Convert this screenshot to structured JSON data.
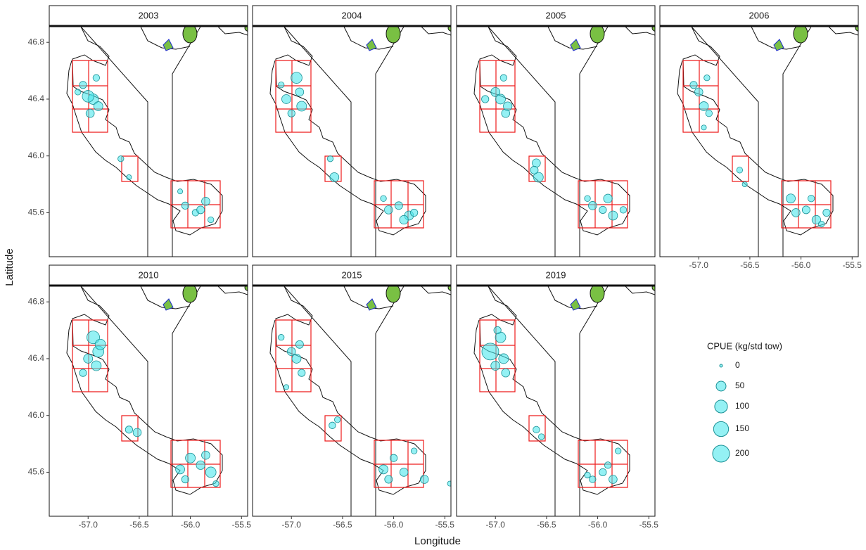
{
  "chart_data": {
    "type": "scatter",
    "x_label": "Longitude",
    "y_label": "Latitude",
    "xlim": [
      -57.38,
      -55.44
    ],
    "ylim": [
      45.29,
      46.91
    ],
    "xticks": [
      {
        "value": -57,
        "label": "-57.0"
      },
      -56.5,
      {
        "value": -56,
        "label": "-56.0"
      },
      -55.5
    ],
    "yticks": [
      45.6,
      {
        "value": 46,
        "label": "46.0"
      },
      46.4,
      46.8
    ],
    "point_fill": "#4de8ec",
    "point_stroke": "#1a8f94",
    "legend": {
      "title": "CPUE (kg/std tow)",
      "values": [
        0,
        50,
        100,
        150,
        200
      ]
    },
    "facets": [
      {
        "name": "2003",
        "x": [
          -57.05,
          -56.95,
          -56.9,
          -57.1,
          -56.98,
          -56.92,
          -57.0,
          -56.68,
          -56.6,
          -56.05,
          -55.95,
          -55.85,
          -55.8,
          -56.1,
          -55.9
        ],
        "y": [
          46.5,
          46.4,
          46.35,
          46.45,
          46.3,
          46.55,
          46.42,
          45.98,
          45.85,
          45.65,
          45.6,
          45.68,
          45.55,
          45.75,
          45.62
        ],
        "size": [
          20,
          60,
          40,
          10,
          30,
          15,
          80,
          10,
          5,
          20,
          15,
          30,
          10,
          5,
          25
        ]
      },
      {
        "name": "2004",
        "x": [
          -56.95,
          -57.05,
          -56.9,
          -57.0,
          -56.92,
          -57.1,
          -56.62,
          -56.58,
          -56.05,
          -55.95,
          -55.85,
          -55.8,
          -56.1,
          -55.9
        ],
        "y": [
          46.55,
          46.4,
          46.35,
          46.3,
          46.45,
          46.5,
          45.98,
          45.85,
          45.62,
          45.65,
          45.58,
          45.6,
          45.7,
          45.55
        ],
        "size": [
          70,
          40,
          50,
          20,
          30,
          10,
          10,
          40,
          30,
          25,
          40,
          20,
          10,
          35
        ]
      },
      {
        "name": "2005",
        "x": [
          -57.0,
          -56.95,
          -56.9,
          -57.1,
          -56.92,
          -56.88,
          -56.6,
          -56.58,
          -56.62,
          -56.05,
          -55.95,
          -55.85,
          -55.75,
          -56.1,
          -55.9
        ],
        "y": [
          46.45,
          46.4,
          46.3,
          46.4,
          46.55,
          46.35,
          45.95,
          45.85,
          45.9,
          45.65,
          45.62,
          45.58,
          45.62,
          45.7,
          45.7
        ],
        "size": [
          40,
          50,
          30,
          20,
          15,
          35,
          30,
          50,
          25,
          30,
          20,
          40,
          15,
          10,
          35
        ]
      },
      {
        "name": "2006",
        "x": [
          -57.0,
          -56.95,
          -56.9,
          -57.05,
          -56.92,
          -56.95,
          -56.6,
          -56.55,
          -56.1,
          -55.95,
          -55.85,
          -55.75,
          -56.05,
          -55.9,
          -55.8
        ],
        "y": [
          46.45,
          46.35,
          46.3,
          46.5,
          46.55,
          46.2,
          45.9,
          45.8,
          45.7,
          45.62,
          45.55,
          45.6,
          45.6,
          45.7,
          45.52
        ],
        "size": [
          30,
          40,
          15,
          20,
          10,
          5,
          10,
          5,
          40,
          25,
          35,
          20,
          30,
          15,
          10
        ]
      },
      {
        "name": "2010",
        "x": [
          -56.95,
          -56.9,
          -57.0,
          -56.92,
          -57.05,
          -56.88,
          -56.6,
          -56.52,
          -56.1,
          -56.0,
          -55.9,
          -55.8,
          -56.05,
          -55.85,
          -55.75
        ],
        "y": [
          46.55,
          46.45,
          46.4,
          46.35,
          46.3,
          46.5,
          45.9,
          45.88,
          45.62,
          45.7,
          45.65,
          45.6,
          45.55,
          45.72,
          45.52
        ],
        "size": [
          100,
          70,
          40,
          50,
          20,
          60,
          20,
          30,
          40,
          50,
          35,
          60,
          20,
          30,
          10
        ]
      },
      {
        "name": "2015",
        "x": [
          -57.0,
          -56.95,
          -56.9,
          -57.1,
          -56.92,
          -57.05,
          -56.6,
          -56.55,
          -56.1,
          -56.0,
          -55.9,
          -55.8,
          -56.05,
          -55.7,
          -55.45
        ],
        "y": [
          46.45,
          46.4,
          46.3,
          46.55,
          46.5,
          46.2,
          45.93,
          45.97,
          45.62,
          45.7,
          45.6,
          45.75,
          45.55,
          45.55,
          45.52
        ],
        "size": [
          30,
          40,
          20,
          10,
          25,
          5,
          15,
          10,
          40,
          20,
          30,
          10,
          25,
          30,
          5
        ]
      },
      {
        "name": "2019",
        "x": [
          -57.05,
          -56.95,
          -56.92,
          -56.9,
          -57.0,
          -56.98,
          -56.6,
          -56.55,
          -56.05,
          -55.95,
          -55.85,
          -55.8,
          -56.1,
          -55.9
        ],
        "y": [
          46.45,
          46.55,
          46.4,
          46.3,
          46.35,
          46.6,
          45.9,
          45.85,
          45.55,
          45.6,
          45.55,
          45.75,
          45.58,
          45.65
        ],
        "size": [
          200,
          60,
          50,
          30,
          40,
          20,
          15,
          10,
          15,
          20,
          30,
          10,
          10,
          15
        ]
      }
    ]
  }
}
